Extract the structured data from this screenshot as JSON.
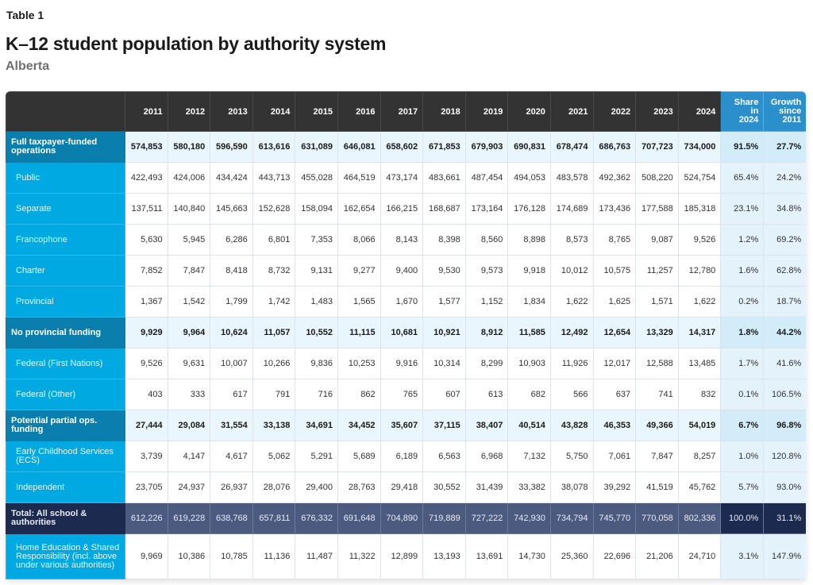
{
  "header": {
    "table_label": "Table 1",
    "title": "K–12 student population by authority system",
    "subtitle": "Alberta"
  },
  "table": {
    "columns": [
      "2011",
      "2012",
      "2013",
      "2014",
      "2015",
      "2016",
      "2017",
      "2018",
      "2019",
      "2020",
      "2021",
      "2022",
      "2023",
      "2024"
    ],
    "share_header": [
      "Share",
      "in",
      "2024"
    ],
    "growth_header": [
      "Growth",
      "since",
      "2011"
    ],
    "rows": [
      {
        "type": "sec",
        "label": "Full taxpayer-funded operations",
        "values": [
          "574,853",
          "580,180",
          "596,590",
          "613,616",
          "631,089",
          "646,081",
          "658,602",
          "671,853",
          "679,903",
          "690,831",
          "678,474",
          "686,763",
          "707,723",
          "734,000"
        ],
        "share": "91.5%",
        "growth": "27.7%"
      },
      {
        "type": "sub",
        "label": "Public",
        "values": [
          "422,493",
          "424,006",
          "434,424",
          "443,713",
          "455,028",
          "464,519",
          "473,174",
          "483,661",
          "487,454",
          "494,053",
          "483,578",
          "492,362",
          "508,220",
          "524,754"
        ],
        "share": "65.4%",
        "growth": "24.2%"
      },
      {
        "type": "sub",
        "label": "Separate",
        "values": [
          "137,511",
          "140,840",
          "145,663",
          "152,628",
          "158,094",
          "162,654",
          "166,215",
          "168,687",
          "173,164",
          "176,128",
          "174,689",
          "173,436",
          "177,588",
          "185,318"
        ],
        "share": "23.1%",
        "growth": "34.8%"
      },
      {
        "type": "sub",
        "label": "Francophone",
        "values": [
          "5,630",
          "5,945",
          "6,286",
          "6,801",
          "7,353",
          "8,066",
          "8,143",
          "8,398",
          "8,560",
          "8,898",
          "8,573",
          "8,765",
          "9,087",
          "9,526"
        ],
        "share": "1.2%",
        "growth": "69.2%"
      },
      {
        "type": "sub",
        "label": "Charter",
        "values": [
          "7,852",
          "7,847",
          "8,418",
          "8,732",
          "9,131",
          "9,277",
          "9,400",
          "9,530",
          "9,573",
          "9,918",
          "10,012",
          "10,575",
          "11,257",
          "12,780"
        ],
        "share": "1.6%",
        "growth": "62.8%"
      },
      {
        "type": "sub",
        "label": "Provincial",
        "values": [
          "1,367",
          "1,542",
          "1,799",
          "1,742",
          "1,483",
          "1,565",
          "1,670",
          "1,577",
          "1,152",
          "1,834",
          "1,622",
          "1,625",
          "1,571",
          "1,622"
        ],
        "share": "0.2%",
        "growth": "18.7%"
      },
      {
        "type": "sec",
        "label": "No provincial funding",
        "values": [
          "9,929",
          "9,964",
          "10,624",
          "11,057",
          "10,552",
          "11,115",
          "10,681",
          "10,921",
          "8,912",
          "11,585",
          "12,492",
          "12,654",
          "13,329",
          "14,317"
        ],
        "share": "1.8%",
        "growth": "44.2%"
      },
      {
        "type": "sub",
        "label": "Federal (First Nations)",
        "values": [
          "9,526",
          "9,631",
          "10,007",
          "10,266",
          "9,836",
          "10,253",
          "9,916",
          "10,314",
          "8,299",
          "10,903",
          "11,926",
          "12,017",
          "12,588",
          "13,485"
        ],
        "share": "1.7%",
        "growth": "41.6%"
      },
      {
        "type": "sub",
        "label": "Federal (Other)",
        "values": [
          "403",
          "333",
          "617",
          "791",
          "716",
          "862",
          "765",
          "607",
          "613",
          "682",
          "566",
          "637",
          "741",
          "832"
        ],
        "share": "0.1%",
        "growth": "106.5%"
      },
      {
        "type": "sec",
        "label": "Potential partial ops. funding",
        "values": [
          "27,444",
          "29,084",
          "31,554",
          "33,138",
          "34,691",
          "34,452",
          "35,607",
          "37,115",
          "38,407",
          "40,514",
          "43,828",
          "46,353",
          "49,366",
          "54,019"
        ],
        "share": "6.7%",
        "growth": "96.8%"
      },
      {
        "type": "sub",
        "label": "Early Childhood Services (ECS)",
        "values": [
          "3,739",
          "4,147",
          "4,617",
          "5,062",
          "5,291",
          "5,689",
          "6,189",
          "6,563",
          "6,968",
          "7,132",
          "5,750",
          "7,061",
          "7,847",
          "8,257"
        ],
        "share": "1.0%",
        "growth": "120.8%"
      },
      {
        "type": "sub",
        "label": "Independent",
        "values": [
          "23,705",
          "24,937",
          "26,937",
          "28,076",
          "29,400",
          "28,763",
          "29,418",
          "30,552",
          "31,439",
          "33,382",
          "38,078",
          "39,292",
          "41,519",
          "45,762"
        ],
        "share": "5.7%",
        "growth": "93.0%"
      },
      {
        "type": "tot",
        "label": "Total: All school & authorities",
        "values": [
          "612,226",
          "619,228",
          "638,768",
          "657,811",
          "676,332",
          "691,648",
          "704,890",
          "719,889",
          "727,222",
          "742,930",
          "734,794",
          "745,770",
          "770,058",
          "802,336"
        ],
        "share": "100.0%",
        "growth": "31.1%"
      },
      {
        "type": "sub last",
        "label": "Home Education & Shared Responsibility (incl. above under various authorities)",
        "values": [
          "9,969",
          "10,386",
          "10,785",
          "11,136",
          "11,487",
          "11,322",
          "12,899",
          "13,193",
          "13,691",
          "14,730",
          "25,360",
          "22,696",
          "21,206",
          "24,710"
        ],
        "share": "3.1%",
        "growth": "147.9%"
      }
    ]
  }
}
